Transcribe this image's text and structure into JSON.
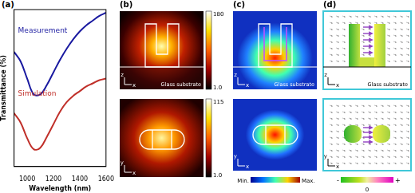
{
  "chart_data": {
    "type": "line",
    "title": "(a)",
    "x_label": "Wavelength (nm)",
    "y_label": "Transmittance (%)",
    "x": [
      900,
      950,
      1000,
      1050,
      1100,
      1150,
      1200,
      1250,
      1300,
      1350,
      1400,
      1450,
      1500,
      1550,
      1600
    ],
    "series": [
      {
        "name": "Measurement",
        "color": "#1a1aa0",
        "values": [
          73,
          67,
          56,
          46,
          46,
          52,
          60,
          68,
          75,
          81,
          86,
          90,
          93,
          96,
          98
        ]
      },
      {
        "name": "Simulation",
        "color": "#c0302a",
        "values": [
          34,
          28,
          18,
          11,
          12,
          19,
          27,
          35,
          41,
          45,
          48,
          51,
          53,
          55,
          56
        ]
      }
    ],
    "xlim": [
      900,
      1600
    ],
    "xticks": [
      1000,
      1200,
      1400,
      1600
    ],
    "ylim": [
      0,
      100
    ],
    "tick_labels": "x",
    "grid": false
  },
  "panel_b": {
    "label": "(b)",
    "top": {
      "substrate": "Glass substrate",
      "axes": [
        "z",
        "x"
      ],
      "colorbar_range": [
        1,
        180
      ],
      "colorbar_ticks": [
        {
          "value": 180,
          "label": "180"
        },
        {
          "value": 1,
          "label": "1.0"
        }
      ]
    },
    "bottom": {
      "axes": [
        "y",
        "x"
      ],
      "colorbar_range": [
        1,
        115
      ],
      "colorbar_ticks": [
        {
          "value": 115,
          "label": "115"
        },
        {
          "value": 1,
          "label": "1.0"
        }
      ]
    }
  },
  "panel_c": {
    "label": "(c)",
    "top": {
      "substrate": "Glass substrate",
      "axes": [
        "z",
        "x"
      ]
    },
    "bottom": {
      "axes": [
        "y",
        "x"
      ]
    },
    "colorbar_labels": [
      "Min.",
      "Max."
    ]
  },
  "panel_d": {
    "label": "(d)",
    "top": {
      "substrate": "Glass substrate",
      "axes": [
        "z",
        "x"
      ]
    },
    "bottom": {
      "axes": [
        "y",
        "x"
      ]
    },
    "colorbar_labels": [
      "-",
      "0",
      "+"
    ]
  }
}
